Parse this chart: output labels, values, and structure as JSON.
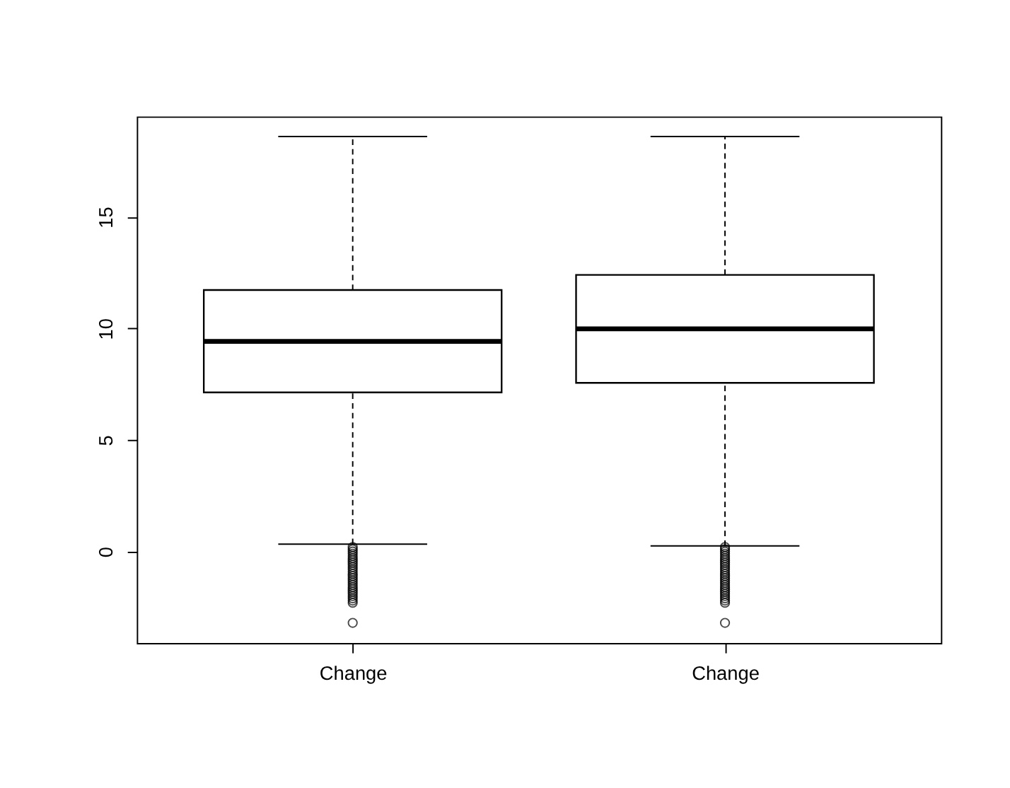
{
  "chart_data": {
    "type": "box",
    "categories": [
      "Change",
      "Change"
    ],
    "boxes": [
      {
        "low": 0.33,
        "q1": 7.13,
        "median": 9.42,
        "q3": 11.72,
        "high": 18.6,
        "outliers": [
          0.2,
          0.1,
          0.0,
          -0.1,
          -0.2,
          -0.3,
          -0.4,
          -0.5,
          -0.6,
          -0.7,
          -0.8,
          -0.9,
          -1.0,
          -1.1,
          -1.2,
          -1.3,
          -1.4,
          -1.5,
          -1.6,
          -1.7,
          -1.8,
          -1.9,
          -2.0,
          -2.1,
          -2.2,
          -2.3,
          -3.2
        ]
      },
      {
        "low": 0.25,
        "q1": 7.56,
        "median": 9.98,
        "q3": 12.4,
        "high": 18.6,
        "outliers": [
          0.2,
          0.1,
          0.0,
          -0.1,
          -0.2,
          -0.3,
          -0.4,
          -0.5,
          -0.6,
          -0.7,
          -0.8,
          -0.9,
          -1.0,
          -1.1,
          -1.2,
          -1.3,
          -1.4,
          -1.5,
          -1.6,
          -1.7,
          -1.8,
          -1.9,
          -2.0,
          -2.1,
          -2.2,
          -2.3,
          -3.2
        ]
      }
    ],
    "ylim": [
      -4.1,
      19.5
    ],
    "yticks": [
      0,
      5,
      10,
      15
    ],
    "grid": false
  }
}
